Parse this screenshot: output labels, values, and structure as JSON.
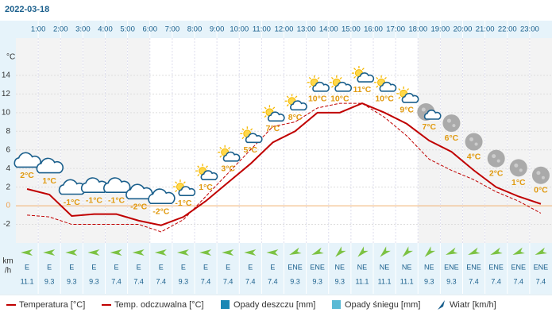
{
  "chart_data": {
    "type": "line",
    "title": "2022-03-18",
    "ylabel": "°C",
    "xlim": [
      0,
      24
    ],
    "xticks": [
      {
        "value": 1,
        "label": "1:00"
      },
      {
        "value": 2,
        "label": "2:00"
      },
      {
        "value": 3,
        "label": "3:00"
      },
      {
        "value": 4,
        "label": "4:00"
      },
      {
        "value": 5,
        "label": "5:00"
      },
      {
        "value": 6,
        "label": "6:00"
      },
      {
        "value": 7,
        "label": "7:00"
      },
      {
        "value": 8,
        "label": "8:00"
      },
      {
        "value": 9,
        "label": "9:00"
      },
      {
        "value": 10,
        "label": "10:00"
      },
      {
        "value": 11,
        "label": "11:00"
      },
      {
        "value": 12,
        "label": "12:00"
      },
      {
        "value": 13,
        "label": "13:00"
      },
      {
        "value": 14,
        "label": "14:00"
      },
      {
        "value": 15,
        "label": "15:00"
      },
      {
        "value": 16,
        "label": "16:00"
      },
      {
        "value": 17,
        "label": "17:00"
      },
      {
        "value": 18,
        "label": "18:00"
      },
      {
        "value": 19,
        "label": "19:00"
      },
      {
        "value": 20,
        "label": "20:00"
      },
      {
        "value": 21,
        "label": "21:00"
      },
      {
        "value": 22,
        "label": "22:00"
      },
      {
        "value": 23,
        "label": "23:00"
      }
    ],
    "ylim": [
      -4,
      18
    ],
    "yticks": [
      -2,
      0,
      2,
      4,
      6,
      8,
      10,
      12,
      14
    ],
    "x": [
      0.5,
      1.5,
      2.5,
      3.5,
      4.5,
      5.5,
      6.5,
      7.5,
      8.5,
      9.5,
      10.5,
      11.5,
      12.5,
      13.5,
      14.5,
      15.5,
      16.5,
      17.5,
      18.5,
      19.5,
      20.5,
      21.5,
      22.5,
      23.5
    ],
    "series": [
      {
        "name": "Temperatura [°C]",
        "color": "#c00000",
        "values": [
          1.8,
          1.2,
          -1.1,
          -0.9,
          -0.9,
          -1.6,
          -2.1,
          -1.2,
          0.5,
          2.5,
          4.5,
          6.8,
          8.0,
          10.0,
          10.0,
          11.0,
          10.0,
          8.8,
          7.0,
          5.8,
          3.8,
          2.0,
          1.0,
          0.2
        ],
        "value_labels": [
          "2°C",
          "1°C",
          "-1°C",
          "-1°C",
          "-1°C",
          "-2°C",
          "-2°C",
          "-1°C",
          "1°C",
          "3°C",
          "5°C",
          "7°C",
          "8°C",
          "10°C",
          "10°C",
          "11°C",
          "10°C",
          "9°C",
          "7°C",
          "6°C",
          "4°C",
          "2°C",
          "1°C",
          "0°C"
        ]
      },
      {
        "name": "Temp. odczuwalna [°C]",
        "color": "#c00000",
        "dashed": true,
        "values": [
          -1.0,
          -1.2,
          -2.0,
          -2.0,
          -2.0,
          -2.0,
          -2.8,
          -1.5,
          1.0,
          3.5,
          6.0,
          8.5,
          9.0,
          10.5,
          11.0,
          11.0,
          9.5,
          7.5,
          5.0,
          3.8,
          2.8,
          1.5,
          0.5,
          -0.8
        ]
      },
      {
        "name": "Opady deszczu [mm]",
        "color": "#1b87b4",
        "values": [
          null,
          null,
          null,
          null,
          null,
          null,
          null,
          null,
          null,
          null,
          null,
          null,
          null,
          null,
          null,
          null,
          null,
          null,
          null,
          null,
          null,
          null,
          null,
          null
        ]
      },
      {
        "name": "Opady śniegu [mm]",
        "color": "#5bbad5",
        "values": [
          null,
          null,
          null,
          null,
          null,
          null,
          null,
          null,
          null,
          null,
          null,
          null,
          null,
          null,
          null,
          null,
          null,
          null,
          null,
          null,
          null,
          null,
          null,
          null
        ]
      }
    ],
    "wind": {
      "name": "Wiatr [km/h]",
      "unit": [
        "km",
        "/h"
      ],
      "color": "#7cc243",
      "directions": [
        "E",
        "E",
        "E",
        "E",
        "E",
        "E",
        "E",
        "E",
        "E",
        "E",
        "E",
        "E",
        "ENE",
        "ENE",
        "NE",
        "NE",
        "NE",
        "NE",
        "NE",
        "ENE",
        "ENE",
        "ENE",
        "ENE",
        "ENE"
      ],
      "values": [
        11.1,
        9.3,
        9.3,
        9.3,
        7.4,
        7.4,
        7.4,
        9.3,
        7.4,
        7.4,
        7.4,
        7.4,
        9.3,
        9.3,
        9.3,
        11.1,
        11.1,
        11.1,
        9.3,
        9.3,
        7.4,
        7.4,
        7.4,
        7.4
      ]
    }
  }
}
